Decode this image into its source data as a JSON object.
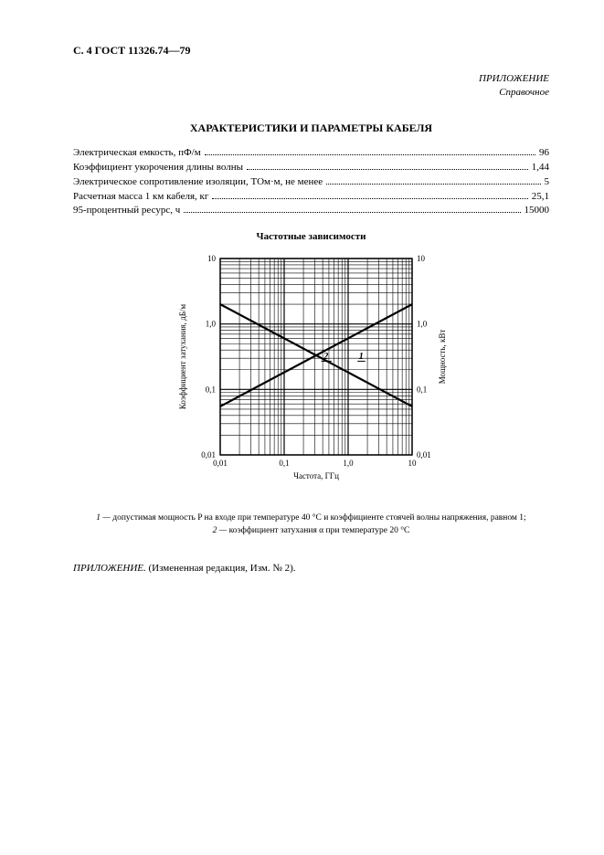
{
  "page_header": "С. 4 ГОСТ 11326.74—79",
  "annex": {
    "title": "ПРИЛОЖЕНИЕ",
    "subtitle": "Справочное"
  },
  "main_title": "ХАРАКТЕРИСТИКИ И ПАРАМЕТРЫ КАБЕЛЯ",
  "parameters": [
    {
      "label": "Электрическая емкость, пФ/м",
      "value": "96"
    },
    {
      "label": "Коэффициент укорочения длины волны",
      "value": "1,44"
    },
    {
      "label": "Электрическое сопротивление изоляции, ТОм·м, не менее",
      "value": "5"
    },
    {
      "label": "Расчетная масса 1 км кабеля, кг",
      "value": "25,1"
    },
    {
      "label": "95-процентный ресурс, ч",
      "value": "15000"
    }
  ],
  "chart": {
    "type": "line",
    "title": "Частотные зависимости",
    "background_color": "#ffffff",
    "axis_color": "#000000",
    "grid_color": "#000000",
    "grid_stroke_width": 0.6,
    "axis_stroke_width": 1.4,
    "line_stroke_width": 2.2,
    "fontsize_axis_title": 9,
    "fontsize_tick": 9,
    "fontsize_curve_label": 10,
    "x": {
      "label": "Частота, ГГц",
      "scale": "log",
      "min": 0.01,
      "max": 10,
      "decade_ticks": [
        0.01,
        0.1,
        1.0,
        10
      ],
      "tick_labels": [
        "0,01",
        "0,1",
        "1,0",
        "10"
      ]
    },
    "y_left": {
      "label": "Коэффициент затухания, дБ/м",
      "scale": "log",
      "min": 0.01,
      "max": 10,
      "decade_ticks": [
        0.01,
        0.1,
        1.0,
        10
      ],
      "tick_labels": [
        "0,01",
        "0,1",
        "1,0",
        "10"
      ]
    },
    "y_right": {
      "label": "Мощность, кВт",
      "scale": "log",
      "min": 0.01,
      "max": 10,
      "decade_ticks": [
        0.01,
        0.1,
        1.0,
        10
      ],
      "tick_labels": [
        "0,01",
        "0,1",
        "1,0",
        "10"
      ]
    },
    "series": [
      {
        "id": "power",
        "curve_label": "1",
        "axis": "right",
        "color": "#000000",
        "points": [
          {
            "x": 0.01,
            "y": 2.0
          },
          {
            "x": 10,
            "y": 0.055
          }
        ]
      },
      {
        "id": "attenuation",
        "curve_label": "2",
        "axis": "left",
        "color": "#000000",
        "points": [
          {
            "x": 0.01,
            "y": 0.055
          },
          {
            "x": 10,
            "y": 2.0
          }
        ]
      }
    ],
    "curve_label_positions": {
      "1": {
        "x": 1.6,
        "y_screen_hint": "just_below_crossing_right"
      },
      "2": {
        "x": 0.45,
        "y_screen_hint": "just_below_crossing_left"
      }
    }
  },
  "chart_caption": {
    "line1_prefix": "1 — ",
    "line1": "допустимая мощность P на входе при температуре 40 °С и коэффициенте стоячей волны напряжения, равном 1;",
    "line2_prefix": "2 — ",
    "line2": "коэффициент затухания α при температуре 20 °С"
  },
  "footnote": {
    "lead": "ПРИЛОЖЕНИЕ.",
    "body": " (Измененная редакция, Изм. № 2)."
  }
}
